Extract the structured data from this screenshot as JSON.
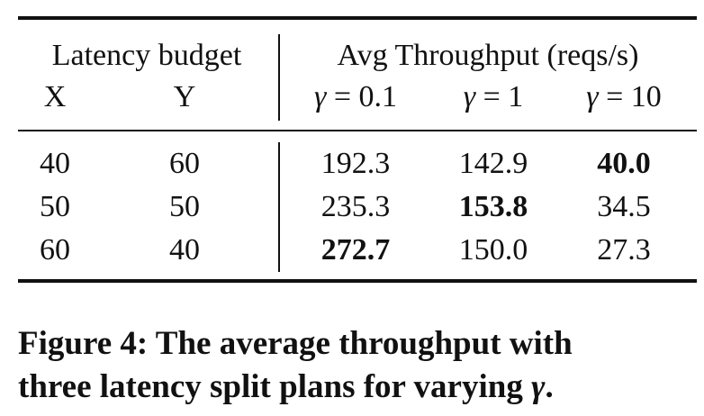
{
  "table": {
    "group_headers": {
      "latency": "Latency budget",
      "throughput": "Avg Throughput (reqs/s)"
    },
    "sub_headers": {
      "x": "X",
      "y": "Y",
      "gamma_symbol": "γ",
      "gamma_1": "= 0.1",
      "gamma_2": "= 1",
      "gamma_3": "= 10"
    },
    "rows": [
      {
        "x": "40",
        "y": "60",
        "g01": "192.3",
        "g1": "142.9",
        "g10": "40.0",
        "best": "g10"
      },
      {
        "x": "50",
        "y": "50",
        "g01": "235.3",
        "g1": "153.8",
        "g10": "34.5",
        "best": "g1"
      },
      {
        "x": "60",
        "y": "40",
        "g01": "272.7",
        "g1": "150.0",
        "g10": "27.3",
        "best": "g01"
      }
    ]
  },
  "caption": {
    "line1": "Figure 4: The average throughput with",
    "line2_text": "three latency split plans for varying ",
    "line2_symbol": "γ",
    "line2_end": "."
  }
}
